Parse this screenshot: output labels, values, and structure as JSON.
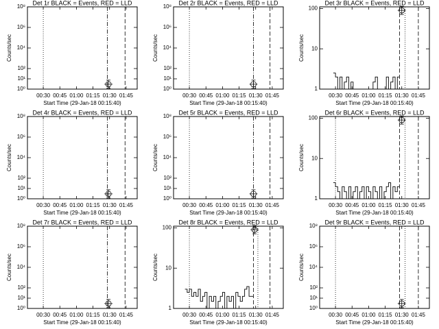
{
  "chart_data": [
    {
      "type": "line",
      "title": "Det 1r BLACK = Events, RED = LLD",
      "ylabel": "Counts/sec",
      "xlabel": "Start Time (29-Jan-18 00:15:40)",
      "xlim": [
        15.67,
        115
      ],
      "xticks": [
        {
          "value": 30,
          "label": "00:30"
        },
        {
          "value": 45,
          "label": "00:45"
        },
        {
          "value": 60,
          "label": "01:00"
        },
        {
          "value": 75,
          "label": "01:15"
        },
        {
          "value": 90,
          "label": "01:30"
        },
        {
          "value": 105,
          "label": "01:45"
        }
      ],
      "ylim": [
        1,
        100000000
      ],
      "log_y": true,
      "yticks": [
        {
          "value": 1,
          "label": "10⁰"
        },
        {
          "value": 10,
          "label": "10¹"
        },
        {
          "value": 100,
          "label": "10²"
        },
        {
          "value": 10000,
          "label": "10⁴"
        },
        {
          "value": 1000000,
          "label": "10⁶"
        },
        {
          "value": 100000000,
          "label": "10⁸"
        }
      ],
      "vlines": [
        {
          "x": 30,
          "style": "dotted"
        },
        {
          "x": 88,
          "style": "dashdot"
        },
        {
          "x": 104,
          "style": "dashed"
        }
      ],
      "series": [],
      "marker": {
        "x": 89,
        "y": 3
      }
    },
    {
      "type": "line",
      "title": "Det 2r BLACK = Events, RED = LLD",
      "ylabel": "Counts/sec",
      "xlabel": "Start Time (29-Jan-18 00:15:40)",
      "xlim": [
        15.67,
        115
      ],
      "xticks": [
        {
          "value": 30,
          "label": "00:30"
        },
        {
          "value": 45,
          "label": "00:45"
        },
        {
          "value": 60,
          "label": "01:00"
        },
        {
          "value": 75,
          "label": "01:15"
        },
        {
          "value": 90,
          "label": "01:30"
        },
        {
          "value": 105,
          "label": "01:45"
        }
      ],
      "ylim": [
        1,
        100000000
      ],
      "log_y": true,
      "yticks": [
        {
          "value": 1,
          "label": "10⁰"
        },
        {
          "value": 10,
          "label": "10¹"
        },
        {
          "value": 100,
          "label": "10²"
        },
        {
          "value": 10000,
          "label": "10⁴"
        },
        {
          "value": 1000000,
          "label": "10⁶"
        },
        {
          "value": 100000000,
          "label": "10⁸"
        }
      ],
      "vlines": [
        {
          "x": 30,
          "style": "dotted"
        },
        {
          "x": 88,
          "style": "dashdot"
        },
        {
          "x": 103,
          "style": "dashed"
        }
      ],
      "series": [],
      "marker": {
        "x": 88,
        "y": 3
      }
    },
    {
      "type": "line",
      "title": "Det 3r BLACK = Events, RED = LLD",
      "ylabel": "Counts/sec",
      "xlabel": "Start Time (29-Jan-18 00:15:40)",
      "xlim": [
        15.67,
        115
      ],
      "xticks": [
        {
          "value": 30,
          "label": "00:30"
        },
        {
          "value": 45,
          "label": "00:45"
        },
        {
          "value": 60,
          "label": "01:00"
        },
        {
          "value": 75,
          "label": "01:15"
        },
        {
          "value": 90,
          "label": "01:30"
        },
        {
          "value": 105,
          "label": "01:45"
        }
      ],
      "ylim": [
        1,
        110
      ],
      "log_y": true,
      "yticks": [
        1,
        10,
        100
      ],
      "vlines": [
        {
          "x": 88,
          "style": "dashed"
        },
        {
          "x": 93,
          "style": "dotted"
        },
        {
          "x": 105,
          "style": "dashed"
        }
      ],
      "series": [
        {
          "color": "#000000",
          "x": [
            28,
            30,
            32,
            34,
            36,
            38,
            40,
            42,
            44,
            46,
            48,
            50,
            52,
            54,
            56,
            58,
            60,
            62,
            64,
            66,
            68,
            70,
            72,
            74,
            76,
            78,
            80,
            82,
            84,
            86
          ],
          "values": [
            2.5,
            2,
            1,
            2,
            1,
            1.5,
            2,
            1,
            1.5,
            1,
            1,
            1,
            1,
            1,
            1,
            1,
            1,
            1,
            1.5,
            2,
            1,
            1,
            1,
            1,
            2,
            1,
            1.5,
            2,
            1,
            2
          ]
        }
      ],
      "marker": {
        "x": 90,
        "y": 90
      }
    },
    {
      "type": "line",
      "title": "Det 4r BLACK = Events, RED = LLD",
      "ylabel": "Counts/sec",
      "xlabel": "Start Time (29-Jan-18 00:15:40)",
      "xlim": [
        15.67,
        115
      ],
      "xticks": [
        {
          "value": 30,
          "label": "00:30"
        },
        {
          "value": 45,
          "label": "00:45"
        },
        {
          "value": 60,
          "label": "01:00"
        },
        {
          "value": 75,
          "label": "01:15"
        },
        {
          "value": 90,
          "label": "01:30"
        },
        {
          "value": 105,
          "label": "01:45"
        }
      ],
      "ylim": [
        1,
        100000000
      ],
      "log_y": true,
      "yticks": [
        {
          "value": 1,
          "label": "10⁰"
        },
        {
          "value": 10,
          "label": "10¹"
        },
        {
          "value": 100,
          "label": "10²"
        },
        {
          "value": 10000,
          "label": "10⁴"
        },
        {
          "value": 1000000,
          "label": "10⁶"
        },
        {
          "value": 100000000,
          "label": "10⁸"
        }
      ],
      "vlines": [
        {
          "x": 30,
          "style": "dotted"
        },
        {
          "x": 88,
          "style": "dashdot"
        },
        {
          "x": 104,
          "style": "dashed"
        }
      ],
      "series": [],
      "marker": {
        "x": 89,
        "y": 3
      }
    },
    {
      "type": "line",
      "title": "Det 5r BLACK = Events, RED = LLD",
      "ylabel": "Counts/sec",
      "xlabel": "Start Time (29-Jan-18 00:15:40)",
      "xlim": [
        15.67,
        115
      ],
      "xticks": [
        {
          "value": 30,
          "label": "00:30"
        },
        {
          "value": 45,
          "label": "00:45"
        },
        {
          "value": 60,
          "label": "01:00"
        },
        {
          "value": 75,
          "label": "01:15"
        },
        {
          "value": 90,
          "label": "01:30"
        },
        {
          "value": 105,
          "label": "01:45"
        }
      ],
      "ylim": [
        1,
        100000000
      ],
      "log_y": true,
      "yticks": [
        {
          "value": 1,
          "label": "10⁰"
        },
        {
          "value": 10,
          "label": "10¹"
        },
        {
          "value": 100,
          "label": "10²"
        },
        {
          "value": 10000,
          "label": "10⁴"
        },
        {
          "value": 1000000,
          "label": "10⁶"
        },
        {
          "value": 100000000,
          "label": "10⁸"
        }
      ],
      "vlines": [
        {
          "x": 30,
          "style": "dotted"
        },
        {
          "x": 88,
          "style": "dashdot"
        },
        {
          "x": 103,
          "style": "dashed"
        }
      ],
      "series": [],
      "marker": {
        "x": 88,
        "y": 3
      }
    },
    {
      "type": "line",
      "title": "Det 6r BLACK = Events, RED = LLD",
      "ylabel": "Counts/sec",
      "xlabel": "Start Time (29-Jan-18 00:15:40)",
      "xlim": [
        15.67,
        115
      ],
      "xticks": [
        {
          "value": 30,
          "label": "00:30"
        },
        {
          "value": 45,
          "label": "00:45"
        },
        {
          "value": 60,
          "label": "01:00"
        },
        {
          "value": 75,
          "label": "01:15"
        },
        {
          "value": 90,
          "label": "01:30"
        },
        {
          "value": 105,
          "label": "01:45"
        }
      ],
      "ylim": [
        1,
        110
      ],
      "log_y": true,
      "yticks": [
        1,
        10,
        100
      ],
      "vlines": [
        {
          "x": 30,
          "style": "dotted"
        },
        {
          "x": 88,
          "style": "dashed"
        },
        {
          "x": 93,
          "style": "dotted"
        },
        {
          "x": 105,
          "style": "dashed"
        }
      ],
      "series": [
        {
          "color": "#000000",
          "x": [
            28,
            30,
            32,
            34,
            36,
            38,
            40,
            42,
            44,
            46,
            48,
            50,
            52,
            54,
            56,
            58,
            60,
            62,
            64,
            66,
            68,
            70,
            72,
            74,
            76,
            78,
            80,
            82,
            84,
            86
          ],
          "values": [
            2.5,
            2,
            1.5,
            1,
            2,
            1.5,
            1,
            2,
            1,
            1.5,
            2,
            1,
            1.5,
            2,
            1,
            2,
            1.5,
            1,
            2,
            1.5,
            1,
            2,
            1,
            1.5,
            2,
            2.5,
            1,
            2,
            1.5,
            2
          ]
        }
      ],
      "marker": {
        "x": 90,
        "y": 90
      }
    },
    {
      "type": "line",
      "title": "Det 7r BLACK = Events, RED = LLD",
      "ylabel": "Counts/sec",
      "xlabel": "Start Time (29-Jan-18 00:15:40)",
      "xlim": [
        15.67,
        115
      ],
      "xticks": [
        {
          "value": 30,
          "label": "00:30"
        },
        {
          "value": 45,
          "label": "00:45"
        },
        {
          "value": 60,
          "label": "01:00"
        },
        {
          "value": 75,
          "label": "01:15"
        },
        {
          "value": 90,
          "label": "01:30"
        },
        {
          "value": 105,
          "label": "01:45"
        }
      ],
      "ylim": [
        1,
        100000000
      ],
      "log_y": true,
      "yticks": [
        {
          "value": 1,
          "label": "10⁰"
        },
        {
          "value": 10,
          "label": "10¹"
        },
        {
          "value": 100,
          "label": "10²"
        },
        {
          "value": 10000,
          "label": "10⁴"
        },
        {
          "value": 1000000,
          "label": "10⁶"
        },
        {
          "value": 100000000,
          "label": "10⁸"
        }
      ],
      "vlines": [
        {
          "x": 30,
          "style": "dotted"
        },
        {
          "x": 88,
          "style": "dashdot"
        },
        {
          "x": 104,
          "style": "dashed"
        }
      ],
      "series": [],
      "marker": {
        "x": 89,
        "y": 3
      }
    },
    {
      "type": "line",
      "title": "Det 8r BLACK = Events, RED = LLD",
      "ylabel": "Counts/sec",
      "xlabel": "Start Time (29-Jan-18 00:15:40)",
      "xlim": [
        15.67,
        115
      ],
      "xticks": [
        {
          "value": 30,
          "label": "00:30"
        },
        {
          "value": 45,
          "label": "00:45"
        },
        {
          "value": 60,
          "label": "01:00"
        },
        {
          "value": 75,
          "label": "01:15"
        },
        {
          "value": 90,
          "label": "01:30"
        },
        {
          "value": 105,
          "label": "01:45"
        }
      ],
      "ylim": [
        1,
        110
      ],
      "log_y": true,
      "yticks": [
        1,
        10,
        100
      ],
      "vlines": [
        {
          "x": 30,
          "style": "dotted"
        },
        {
          "x": 88,
          "style": "dashed"
        },
        {
          "x": 92,
          "style": "dotted"
        },
        {
          "x": 103,
          "style": "dashed"
        }
      ],
      "series": [
        {
          "color": "#000000",
          "x": [
            26,
            28,
            30,
            32,
            34,
            36,
            38,
            40,
            42,
            44,
            46,
            48,
            50,
            52,
            54,
            56,
            58,
            60,
            62,
            64,
            66,
            68,
            70,
            72,
            74,
            76,
            78,
            80,
            82,
            84,
            86
          ],
          "values": [
            3,
            2.5,
            3,
            2,
            2.5,
            2,
            3,
            1.5,
            2,
            2.5,
            1,
            2,
            1.5,
            2,
            1,
            1.5,
            2,
            2.5,
            1,
            2,
            1.5,
            2,
            1,
            2.5,
            2,
            1.5,
            2,
            3,
            3.5,
            2,
            2
          ]
        }
      ],
      "marker": {
        "x": 89,
        "y": 90
      }
    },
    {
      "type": "line",
      "title": "Det 9r BLACK = Events, RED = LLD",
      "ylabel": "Counts/sec",
      "xlabel": "Start Time (29-Jan-18 00:15:40)",
      "xlim": [
        15.67,
        115
      ],
      "xticks": [
        {
          "value": 30,
          "label": "00:30"
        },
        {
          "value": 45,
          "label": "00:45"
        },
        {
          "value": 60,
          "label": "01:00"
        },
        {
          "value": 75,
          "label": "01:15"
        },
        {
          "value": 90,
          "label": "01:30"
        },
        {
          "value": 105,
          "label": "01:45"
        }
      ],
      "ylim": [
        1,
        100000000
      ],
      "log_y": true,
      "yticks": [
        {
          "value": 1,
          "label": "10⁰"
        },
        {
          "value": 10,
          "label": "10¹"
        },
        {
          "value": 100,
          "label": "10²"
        },
        {
          "value": 10000,
          "label": "10⁴"
        },
        {
          "value": 1000000,
          "label": "10⁶"
        },
        {
          "value": 100000000,
          "label": "10⁸"
        }
      ],
      "vlines": [
        {
          "x": 30,
          "style": "dotted"
        },
        {
          "x": 88,
          "style": "dashed"
        },
        {
          "x": 93,
          "style": "dotted"
        },
        {
          "x": 105,
          "style": "dashed"
        }
      ],
      "series": [],
      "marker": {
        "x": 90,
        "y": 3
      }
    }
  ]
}
